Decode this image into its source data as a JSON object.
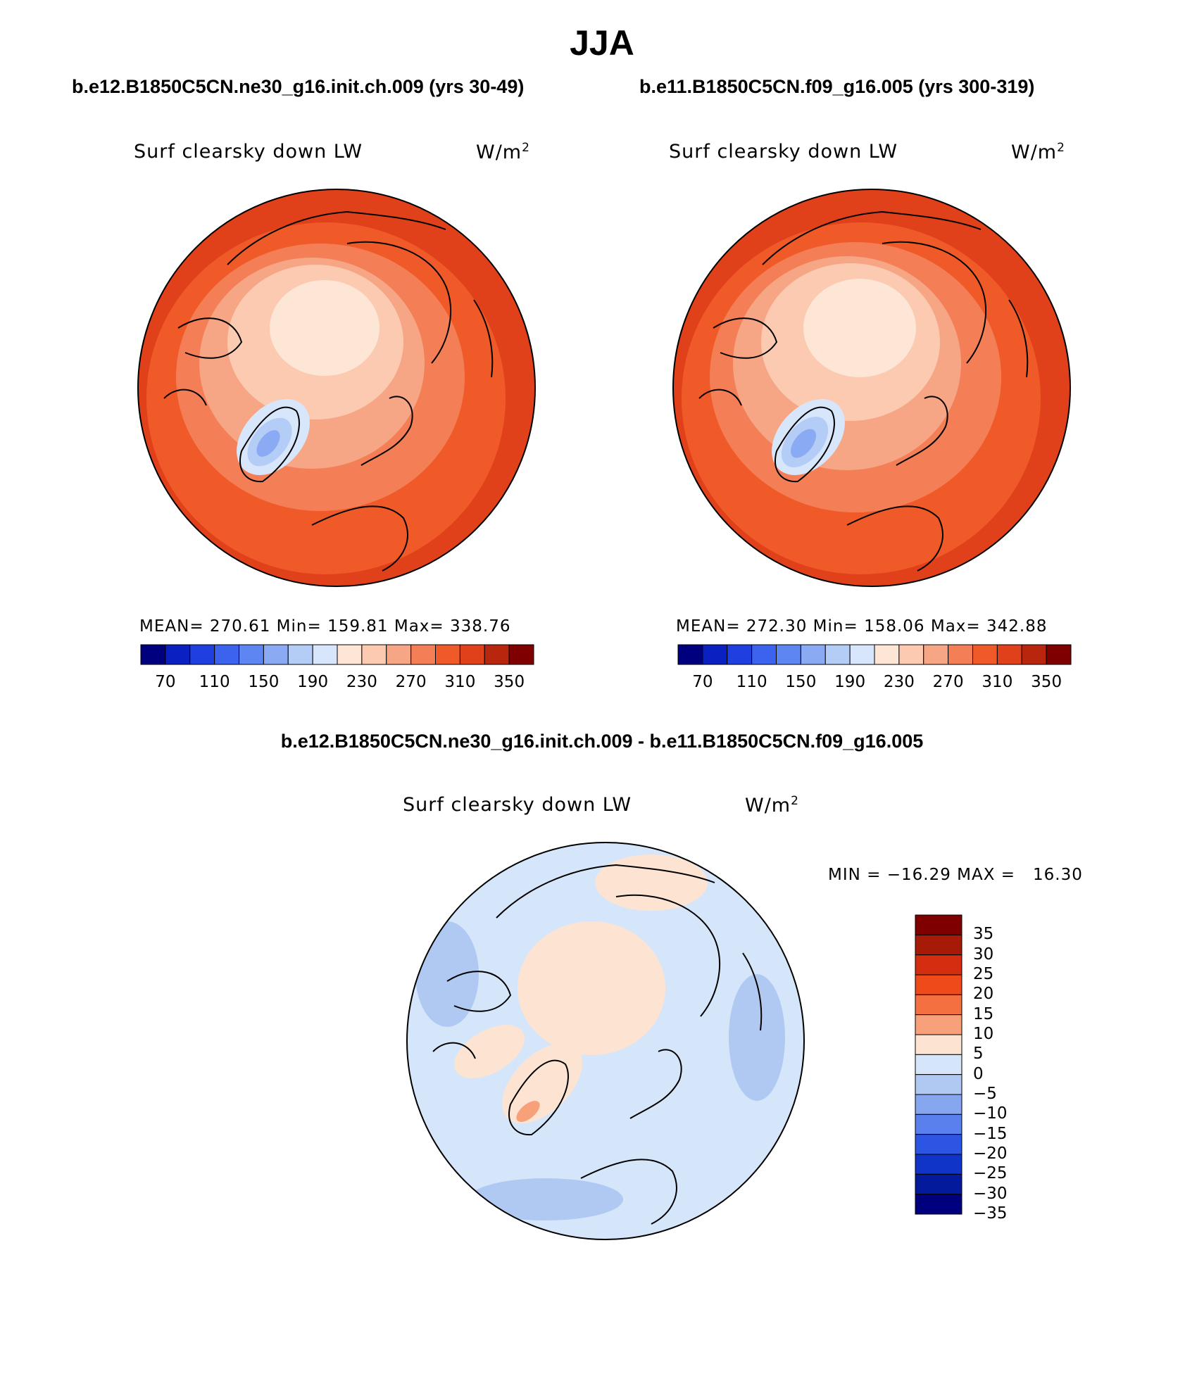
{
  "page_title": "JJA",
  "palette": {
    "abs": [
      "#00007f",
      "#0a20c0",
      "#1f3fe0",
      "#3b63ee",
      "#5d86f2",
      "#8aaaf4",
      "#b4cdf6",
      "#d8e6fb",
      "#fde6d6",
      "#fbcab0",
      "#f6a585",
      "#f47e55",
      "#f05a28",
      "#e0401a",
      "#b8260e",
      "#7f0000"
    ],
    "diff": [
      "#7f0000",
      "#a81a08",
      "#d42d10",
      "#ee4a1a",
      "#f57040",
      "#f8a07a",
      "#fde4d2",
      "#d6e6fa",
      "#b0c9f2",
      "#86a7f0",
      "#5a80ee",
      "#2d55e4",
      "#1033c8",
      "#041a9c",
      "#00007f"
    ]
  },
  "panels": [
    {
      "run": "b.e12.B1850C5CN.ne30_g16.init.ch.009 (yrs 30-49)",
      "variable": "Surf clearsky down LW",
      "units_base": "W/m",
      "units_exp": "2",
      "stats": "MEAN= 270.61   Min= 159.81   Max= 338.76",
      "colorbar_labels": [
        "70",
        "110",
        "150",
        "190",
        "230",
        "270",
        "310",
        "350"
      ]
    },
    {
      "run": "b.e11.B1850C5CN.f09_g16.005 (yrs 300-319)",
      "variable": "Surf clearsky down LW",
      "units_base": "W/m",
      "units_exp": "2",
      "stats": "MEAN= 272.30   Min= 158.06   Max= 342.88",
      "colorbar_labels": [
        "70",
        "110",
        "150",
        "190",
        "230",
        "270",
        "310",
        "350"
      ]
    }
  ],
  "diff_panel": {
    "run": "b.e12.B1850C5CN.ne30_g16.init.ch.009 - b.e11.B1850C5CN.f09_g16.005",
    "variable": "Surf clearsky down LW",
    "units_base": "W/m",
    "units_exp": "2",
    "stats": "MIN = −16.29 MAX =   16.30",
    "colorbar_labels": [
      "35",
      "30",
      "25",
      "20",
      "15",
      "10",
      "5",
      "0",
      "−5",
      "−10",
      "−15",
      "−20",
      "−25",
      "−30",
      "−35"
    ]
  }
}
